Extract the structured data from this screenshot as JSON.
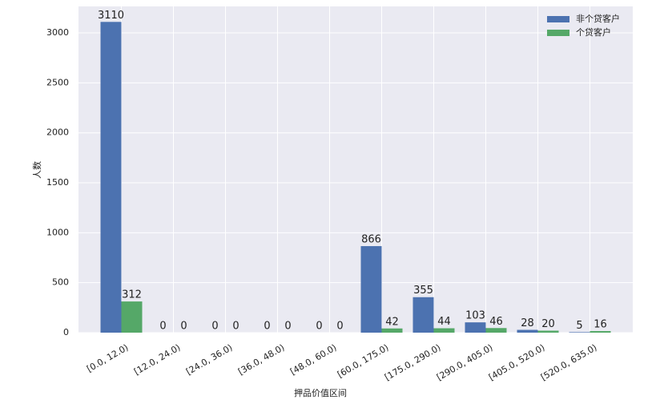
{
  "chart_data": {
    "type": "bar",
    "x_label": "押品价值区间",
    "y_label": "人数",
    "categories": [
      "[0.0, 12.0)",
      "[12.0, 24.0)",
      "[24.0, 36.0)",
      "[36.0, 48.0)",
      "[48.0, 60.0)",
      "[60.0, 175.0)",
      "[175.0, 290.0)",
      "[290.0, 405.0)",
      "[405.0, 520.0)",
      "[520.0, 635.0)"
    ],
    "series": [
      {
        "name": "非个贷客户",
        "color": "#4c72b0",
        "values": [
          3110,
          0,
          0,
          0,
          0,
          866,
          355,
          103,
          28,
          5
        ]
      },
      {
        "name": "个贷客户",
        "color": "#55a868",
        "values": [
          312,
          0,
          0,
          0,
          0,
          42,
          44,
          46,
          20,
          16
        ]
      }
    ],
    "ylim": [
      0,
      3265
    ],
    "yticks": [
      0,
      500,
      1000,
      1500,
      2000,
      2500,
      3000
    ],
    "grid": true,
    "legend": "upper-right",
    "background": "#eaeaf2"
  }
}
